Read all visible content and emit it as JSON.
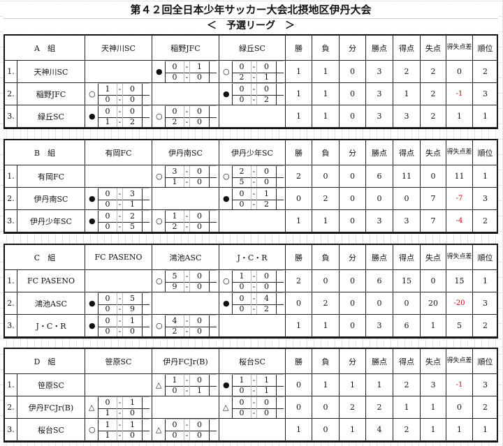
{
  "title": "第４２回全日本少年サッカー大会北摂地区伊丹大会",
  "subtitle": "＜　予選リーグ　＞",
  "headers": {
    "win": "勝",
    "loss": "負",
    "draw": "分",
    "points": "勝点",
    "gf": "得点",
    "ga": "失点",
    "gd": "得失点差",
    "rank": "順位"
  },
  "colors": {
    "negative_diff": "#cc0000",
    "border": "#111111"
  },
  "groups": [
    {
      "label": "A　組",
      "teams": [
        "天神川SC",
        "稲野JFC",
        "緑丘SC"
      ],
      "rows": [
        {
          "no": "1.",
          "team": "天神川SC",
          "matches": [
            null,
            {
              "mark": "●",
              "scores": [
                [
                  "0",
                  "1"
                ],
                [
                  "0",
                  "0"
                ]
              ]
            },
            {
              "mark": "○",
              "scores": [
                [
                  "0",
                  "0"
                ],
                [
                  "2",
                  "1"
                ]
              ]
            }
          ],
          "win": "1",
          "loss": "1",
          "draw": "0",
          "points": "3",
          "gf": "2",
          "ga": "2",
          "gd": "0",
          "rank": "2"
        },
        {
          "no": "2.",
          "team": "稲野JFC",
          "matches": [
            {
              "mark": "○",
              "scores": [
                [
                  "1",
                  "0"
                ],
                [
                  "0",
                  "0"
                ]
              ]
            },
            null,
            {
              "mark": "●",
              "scores": [
                [
                  "0",
                  "0"
                ],
                [
                  "0",
                  "2"
                ]
              ]
            }
          ],
          "win": "1",
          "loss": "1",
          "draw": "0",
          "points": "3",
          "gf": "1",
          "ga": "2",
          "gd": "-1",
          "rank": "3"
        },
        {
          "no": "3.",
          "team": "緑丘SC",
          "matches": [
            {
              "mark": "●",
              "scores": [
                [
                  "0",
                  "0"
                ],
                [
                  "1",
                  "2"
                ]
              ]
            },
            {
              "mark": "○",
              "scores": [
                [
                  "0",
                  "0"
                ],
                [
                  "2",
                  "0"
                ]
              ]
            },
            null
          ],
          "win": "1",
          "loss": "1",
          "draw": "0",
          "points": "3",
          "gf": "3",
          "ga": "2",
          "gd": "1",
          "rank": "1"
        }
      ]
    },
    {
      "label": "B　組",
      "teams": [
        "有岡FC",
        "伊丹南SC",
        "伊丹少年SC"
      ],
      "rows": [
        {
          "no": "1.",
          "team": "有岡FC",
          "matches": [
            null,
            {
              "mark": "○",
              "scores": [
                [
                  "3",
                  "0"
                ],
                [
                  "1",
                  "0"
                ]
              ]
            },
            {
              "mark": "○",
              "scores": [
                [
                  "2",
                  "0"
                ],
                [
                  "5",
                  "0"
                ]
              ]
            }
          ],
          "win": "2",
          "loss": "0",
          "draw": "0",
          "points": "6",
          "gf": "11",
          "ga": "0",
          "gd": "11",
          "rank": "1"
        },
        {
          "no": "2.",
          "team": "伊丹南SC",
          "matches": [
            {
              "mark": "●",
              "scores": [
                [
                  "0",
                  "3"
                ],
                [
                  "0",
                  "1"
                ]
              ]
            },
            null,
            {
              "mark": "●",
              "scores": [
                [
                  "0",
                  "1"
                ],
                [
                  "0",
                  "2"
                ]
              ]
            }
          ],
          "win": "0",
          "loss": "2",
          "draw": "0",
          "points": "0",
          "gf": "0",
          "ga": "7",
          "gd": "-7",
          "rank": "3"
        },
        {
          "no": "3.",
          "team": "伊丹少年SC",
          "matches": [
            {
              "mark": "●",
              "scores": [
                [
                  "0",
                  "2"
                ],
                [
                  "0",
                  "5"
                ]
              ]
            },
            {
              "mark": "○",
              "scores": [
                [
                  "1",
                  "0"
                ],
                [
                  "2",
                  "0"
                ]
              ]
            },
            null
          ],
          "win": "1",
          "loss": "1",
          "draw": "0",
          "points": "3",
          "gf": "3",
          "ga": "7",
          "gd": "-4",
          "rank": "2"
        }
      ]
    },
    {
      "label": "C　組",
      "teams": [
        "FC PASENO",
        "鴻池ASC",
        "J・C・R"
      ],
      "rows": [
        {
          "no": "1.",
          "team": "FC PASENO",
          "matches": [
            null,
            {
              "mark": "○",
              "scores": [
                [
                  "5",
                  "0"
                ],
                [
                  "9",
                  "0"
                ]
              ]
            },
            {
              "mark": "○",
              "scores": [
                [
                  "1",
                  "0"
                ],
                [
                  "0",
                  "0"
                ]
              ]
            }
          ],
          "win": "2",
          "loss": "0",
          "draw": "0",
          "points": "6",
          "gf": "15",
          "ga": "0",
          "gd": "15",
          "rank": "1"
        },
        {
          "no": "2.",
          "team": "鴻池ASC",
          "matches": [
            {
              "mark": "●",
              "scores": [
                [
                  "0",
                  "5"
                ],
                [
                  "0",
                  "9"
                ]
              ]
            },
            null,
            {
              "mark": "●",
              "scores": [
                [
                  "0",
                  "4"
                ],
                [
                  "0",
                  "2"
                ]
              ]
            }
          ],
          "win": "0",
          "loss": "2",
          "draw": "0",
          "points": "0",
          "gf": "0",
          "ga": "20",
          "gd": "-20",
          "rank": "3"
        },
        {
          "no": "3.",
          "team": "J・C・R",
          "matches": [
            {
              "mark": "●",
              "scores": [
                [
                  "0",
                  "1"
                ],
                [
                  "0",
                  "0"
                ]
              ]
            },
            {
              "mark": "○",
              "scores": [
                [
                  "4",
                  "0"
                ],
                [
                  "2",
                  "0"
                ]
              ]
            },
            null
          ],
          "win": "1",
          "loss": "1",
          "draw": "0",
          "points": "3",
          "gf": "6",
          "ga": "1",
          "gd": "5",
          "rank": "2"
        }
      ]
    },
    {
      "label": "D　組",
      "teams": [
        "笹原SC",
        "伊丹FCJr(B)",
        "桜台SC"
      ],
      "rows": [
        {
          "no": "1.",
          "team": "笹原SC",
          "matches": [
            null,
            {
              "mark": "△",
              "scores": [
                [
                  "1",
                  "0"
                ],
                [
                  "0",
                  "1"
                ]
              ]
            },
            {
              "mark": "●",
              "scores": [
                [
                  "1",
                  "1"
                ],
                [
                  "0",
                  "1"
                ]
              ]
            }
          ],
          "win": "0",
          "loss": "1",
          "draw": "1",
          "points": "1",
          "gf": "2",
          "ga": "3",
          "gd": "-1",
          "rank": "3"
        },
        {
          "no": "2.",
          "team": "伊丹FCJr(B)",
          "matches": [
            {
              "mark": "△",
              "scores": [
                [
                  "0",
                  "1"
                ],
                [
                  "1",
                  "0"
                ]
              ]
            },
            null,
            {
              "mark": "△",
              "scores": [
                [
                  "0",
                  "0"
                ],
                [
                  "0",
                  "0"
                ]
              ]
            }
          ],
          "win": "0",
          "loss": "0",
          "draw": "2",
          "points": "2",
          "gf": "1",
          "ga": "1",
          "gd": "0",
          "rank": "2"
        },
        {
          "no": "3.",
          "team": "桜台SC",
          "matches": [
            {
              "mark": "○",
              "scores": [
                [
                  "1",
                  "1"
                ],
                [
                  "1",
                  "0"
                ]
              ]
            },
            {
              "mark": "△",
              "scores": [
                [
                  "0",
                  "0"
                ],
                [
                  "0",
                  "0"
                ]
              ]
            },
            null
          ],
          "win": "1",
          "loss": "0",
          "draw": "1",
          "points": "4",
          "gf": "2",
          "ga": "1",
          "gd": "1",
          "rank": "1"
        }
      ]
    }
  ]
}
